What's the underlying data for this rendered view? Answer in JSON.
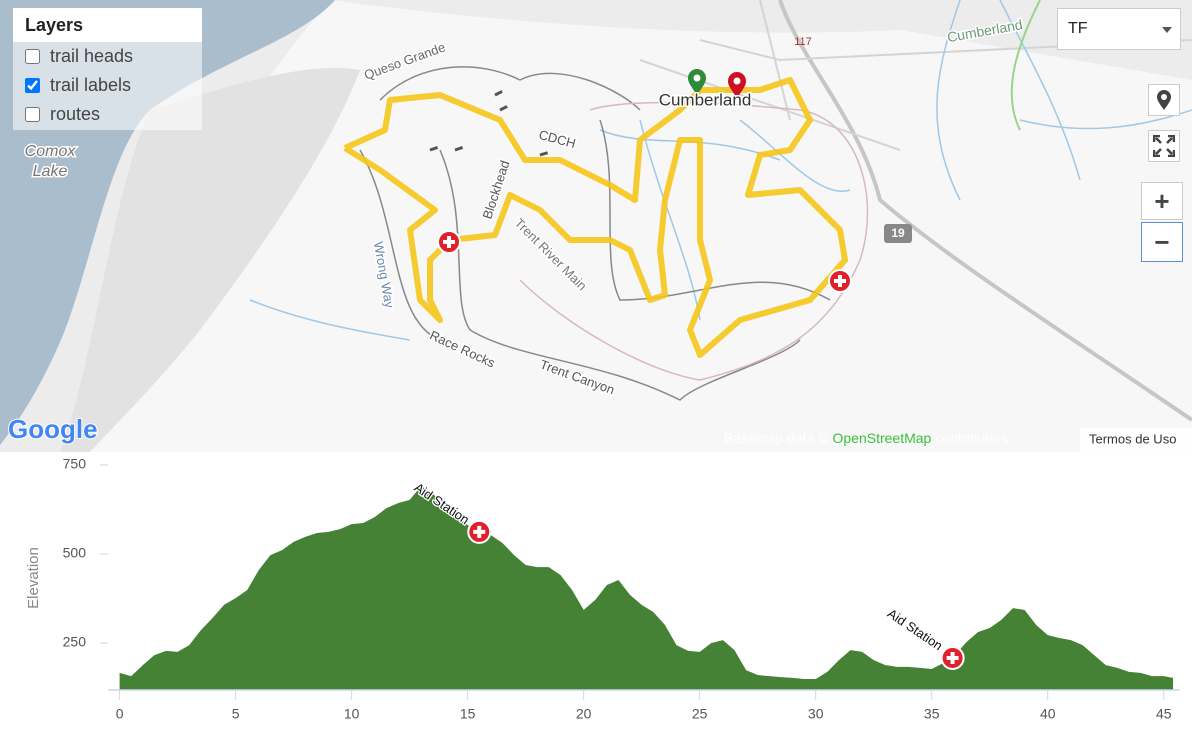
{
  "layers_panel": {
    "title": "Layers",
    "items": [
      {
        "label": "trail heads",
        "checked": false
      },
      {
        "label": "trail labels",
        "checked": true
      },
      {
        "label": "routes",
        "checked": false
      }
    ]
  },
  "route_select": "TF",
  "controls": {
    "zoom_in": "+",
    "zoom_out": "−"
  },
  "map": {
    "labels": [
      "Comox",
      "Lake",
      "Cumberland",
      "Cumberland",
      "Queso Grande",
      "CDCH",
      "Blockhead",
      "Trent River Main",
      "Wrong Way",
      "Race Rocks",
      "Trent Canyon"
    ],
    "road_shields": [
      "117",
      "19"
    ],
    "attribution": {
      "prefix": "Basemap data ©",
      "link": "OpenStreetMap",
      "suffix": "contributors"
    },
    "terms": "Termos de Uso",
    "logo": "Google"
  },
  "chart_data": {
    "type": "area",
    "y_label": "Elevation",
    "x": [
      0,
      0.5,
      1,
      1.5,
      2,
      2.5,
      3,
      3.5,
      4,
      4.5,
      5,
      5.5,
      6,
      6.5,
      7,
      7.5,
      8,
      8.5,
      9,
      9.5,
      10,
      10.5,
      11,
      11.5,
      12,
      12.5,
      13,
      13.5,
      14,
      14.5,
      15,
      15.5,
      16,
      16.5,
      17,
      17.5,
      18,
      18.5,
      19,
      19.5,
      20,
      20.5,
      21,
      21.5,
      22,
      22.5,
      23,
      23.5,
      24,
      24.5,
      25,
      25.5,
      26,
      26.5,
      27,
      27.5,
      28,
      28.5,
      29,
      29.5,
      30,
      30.5,
      31,
      31.5,
      32,
      32.5,
      33,
      33.5,
      34,
      34.5,
      35,
      35.5,
      36,
      36.5,
      37,
      37.5,
      38,
      38.5,
      39,
      39.5,
      40,
      40.5,
      41,
      41.5,
      42,
      42.5,
      43,
      43.5,
      44,
      44.5,
      45,
      45.4
    ],
    "series": [
      {
        "color": "#468236",
        "values": [
          166,
          157,
          188,
          216,
          228,
          225,
          244,
          286,
          320,
          357,
          376,
          399,
          455,
          497,
          511,
          534,
          548,
          559,
          562,
          570,
          584,
          587,
          604,
          629,
          643,
          652,
          691,
          669,
          638,
          610,
          581,
          562,
          553,
          531,
          497,
          469,
          463,
          463,
          441,
          399,
          343,
          371,
          413,
          427,
          385,
          357,
          337,
          301,
          244,
          228,
          225,
          250,
          258,
          230,
          174,
          160,
          157,
          154,
          152,
          149,
          149,
          169,
          202,
          230,
          225,
          202,
          188,
          183,
          183,
          180,
          177,
          194,
          216,
          253,
          281,
          292,
          315,
          348,
          343,
          301,
          272,
          264,
          258,
          244,
          216,
          188,
          180,
          169,
          166,
          157,
          157,
          152
        ]
      }
    ],
    "annotations": [
      {
        "x": 15.5,
        "y": 562,
        "label": "Aid Station"
      },
      {
        "x": 35.9,
        "y": 208,
        "label": "Aid Station"
      }
    ],
    "xlim": [
      -0.5,
      45.7
    ],
    "ylim": [
      118,
      750
    ],
    "xticks": [
      0,
      5,
      10,
      15,
      20,
      25,
      30,
      35,
      40,
      45
    ],
    "yticks": [
      250,
      500,
      750
    ]
  }
}
